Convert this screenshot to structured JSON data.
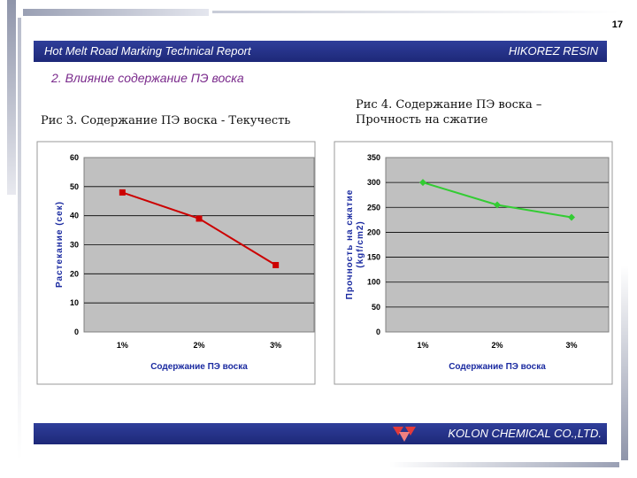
{
  "page_number": "17",
  "header": {
    "left": "Hot Melt Road Marking Technical Report",
    "right": "HIKOREZ RESIN"
  },
  "section_title": "2. Влияние содержание ПЭ воска",
  "captions": {
    "left": "Рис 3. Содержание ПЭ воска - Текучесть",
    "right_line1": "Рис 4. Содержание ПЭ воска –",
    "right_line2": "Прочность на сжатие"
  },
  "footer": {
    "company": "KOLON CHEMICAL CO.,LTD."
  },
  "colors": {
    "band": "#1d2878",
    "series_left": "#cc0000",
    "series_right": "#33cc33",
    "plot_bg": "#c0c0c0",
    "axis_title": "#1a2aa0"
  },
  "chart_data": [
    {
      "type": "line",
      "title": "",
      "categories": [
        "1%",
        "2%",
        "3%"
      ],
      "series": [
        {
          "name": "Растекание",
          "values": [
            48,
            39,
            23
          ]
        }
      ],
      "xlabel": "Содержание ПЭ воска",
      "ylabel": "Растекание (сек)",
      "ylim": [
        0,
        60
      ],
      "yticks": [
        0,
        10,
        20,
        30,
        40,
        50,
        60
      ],
      "yticklabels": [
        "0",
        "10",
        "20",
        "30",
        "40",
        "50",
        "60"
      ],
      "grid": true,
      "legend": "none"
    },
    {
      "type": "line",
      "title": "",
      "categories": [
        "1%",
        "2%",
        "3%"
      ],
      "series": [
        {
          "name": "Прочность",
          "values": [
            300,
            255,
            230
          ]
        }
      ],
      "xlabel": "Содержание ПЭ воска",
      "ylabel_line1": "Прочность на сжатие",
      "ylabel_line2": "(kgf/cm2)",
      "ylim": [
        0,
        350
      ],
      "yticks": [
        0,
        50,
        100,
        150,
        200,
        250,
        300,
        350
      ],
      "yticklabels": [
        "0",
        "50",
        "100",
        "150",
        "200",
        "250",
        "300",
        "350"
      ],
      "grid": true,
      "legend": "none"
    }
  ]
}
